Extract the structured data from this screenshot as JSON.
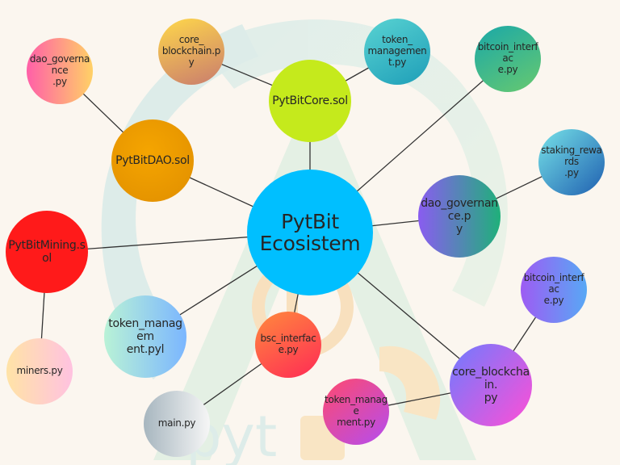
{
  "diagram": {
    "center": {
      "label_line1": "PytBit",
      "label_line2": "Ecosistem"
    },
    "nodes": {
      "core_sol": "PytBitCore.sol",
      "dao_sol": "PytBitDAO.sol",
      "mining_sol": "PytBitMining.sol",
      "core_blockchain_top": "core_\nblockchain.py",
      "token_management_top": "token_\nmanagement.py",
      "dao_governance_left": "dao_governance\n.py",
      "bitcoin_interface_top": "bitcoin_interfac\ne.py",
      "staking_rewards": "staking_rewards\n.py",
      "dao_governance_right": "dao_governance.p\ny",
      "bitcoin_interface_right": "bitcoin_interfac\ne.py",
      "core_blockchain_bottom": "core_blockchain.\npy",
      "token_management_bottom": "token_manage\nment.py",
      "bsc_interface": "bsc_interface.py",
      "token_management_left": "token_managem\nent.pyl",
      "main": "main.py",
      "miners": "miners.py"
    },
    "watermark_text": "pyt"
  },
  "colors": {
    "center": "#00bfff",
    "core_sol": "#c5ea1c",
    "dao_sol": "#f0a000",
    "mining_sol": "#ff1a1a",
    "background": "#fbf6ef"
  }
}
